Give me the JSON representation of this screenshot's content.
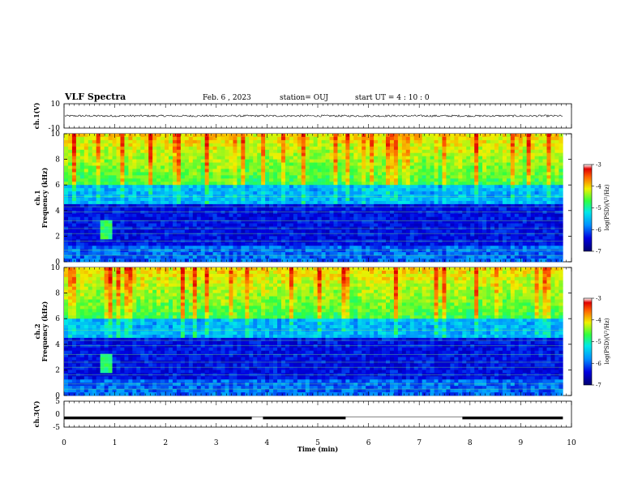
{
  "header": {
    "title": "VLF Spectra",
    "date": "Feb. 6 , 2023",
    "station": "station= OUJ",
    "start_ut": "start UT = 4 : 10 : 0"
  },
  "chart_data": [
    {
      "type": "line",
      "panel": "ch1-waveform",
      "ylabel": "ch.1(V)",
      "ylim": [
        -10,
        10
      ],
      "yticks": [
        "10",
        "-10"
      ],
      "xlim": [
        0,
        10
      ],
      "baseline": 0,
      "note_value_range": [
        -1,
        1
      ]
    },
    {
      "type": "heatmap",
      "panel": "ch1-spectrogram",
      "ylabel": "ch.1",
      "ylabel2": "Frequency (kHz)",
      "ylim": [
        0,
        10
      ],
      "yticks": [
        "0",
        "2",
        "4",
        "6",
        "8",
        "10"
      ],
      "xlim": [
        0,
        9.83
      ],
      "colorbar": {
        "label": "log(PSD)(V²/Hz)",
        "range": [
          -7,
          -3
        ],
        "ticks": [
          "-3",
          "-4",
          "-5",
          "-6",
          "-7"
        ]
      }
    },
    {
      "type": "heatmap",
      "panel": "ch2-spectrogram",
      "ylabel": "ch.2",
      "ylabel2": "Frequency (kHz)",
      "ylim": [
        0,
        10
      ],
      "yticks": [
        "0",
        "2",
        "4",
        "6",
        "8",
        "10"
      ],
      "xlim": [
        0,
        9.83
      ],
      "colorbar": {
        "label": "log(PSD)(V²/Hz)",
        "range": [
          -7,
          -3
        ],
        "ticks": [
          "-3",
          "-4",
          "-5",
          "-6",
          "-7"
        ]
      }
    },
    {
      "type": "line",
      "panel": "ch3-signal",
      "ylabel": "ch.3(V)",
      "ylim": [
        -5,
        5
      ],
      "yticks": [
        "5",
        "0",
        "-5"
      ],
      "xlim": [
        0,
        10
      ],
      "xlabel": "Time (min)",
      "xticks": [
        "0",
        "1",
        "2",
        "3",
        "4",
        "5",
        "6",
        "7",
        "8",
        "9",
        "10"
      ],
      "level": -1.5,
      "segments": [
        [
          0,
          3.7
        ],
        [
          3.92,
          5.55
        ],
        [
          7.85,
          9.83
        ]
      ]
    }
  ]
}
